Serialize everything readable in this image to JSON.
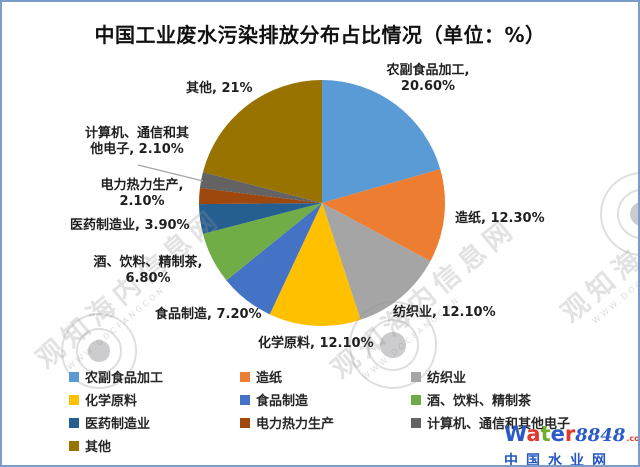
{
  "page": {
    "background": "#FFFFFF",
    "border_color": "#7B9CC9"
  },
  "chart_data": {
    "type": "pie",
    "title": "中国工业废水污染排放分布占比情况（单位：%）",
    "unit": "%",
    "start_angle_deg": 0,
    "direction": "clockwise",
    "legend_position": "bottom",
    "slices": [
      {
        "name": "农副食品加工",
        "value": 20.6,
        "label_lines": [
          "农副食品加工,",
          "20.60%"
        ],
        "color": "#5B9BD5"
      },
      {
        "name": "造纸",
        "value": 12.3,
        "label_lines": [
          "造纸, 12.30%"
        ],
        "color": "#ED7D31"
      },
      {
        "name": "纺织业",
        "value": 12.1,
        "label_lines": [
          "纺织业, 12.10%"
        ],
        "color": "#A5A5A5"
      },
      {
        "name": "化学原料",
        "value": 12.1,
        "label_lines": [
          "化学原料, 12.10%"
        ],
        "color": "#FFC000"
      },
      {
        "name": "食品制造",
        "value": 7.2,
        "label_lines": [
          "食品制造, 7.20%"
        ],
        "color": "#4472C4"
      },
      {
        "name": "酒、饮料、精制茶",
        "value": 6.8,
        "label_lines": [
          "酒、饮料、精制茶,",
          "6.80%"
        ],
        "color": "#70AD47"
      },
      {
        "name": "医药制造业",
        "value": 3.9,
        "label_lines": [
          "医药制造业, 3.90%"
        ],
        "color": "#255E91"
      },
      {
        "name": "电力热力生产",
        "value": 2.1,
        "label_lines": [
          "电力热力生产,",
          "2.10%"
        ],
        "color": "#9E480E"
      },
      {
        "name": "计算机、通信和其他电子",
        "value": 2.1,
        "label_lines": [
          "计算机、通信和其",
          "他电子, 2.10%"
        ],
        "color": "#636363"
      },
      {
        "name": "其他",
        "value": 21,
        "label_lines": [
          "其他, 21%"
        ],
        "color": "#997300"
      }
    ]
  },
  "watermark": {
    "diagonal_text": "观知海内信息网",
    "diagonal_subtext": "WWW.DOCFANGCON",
    "site": {
      "letters": [
        {
          "ch": "W",
          "color": "#2B59C8"
        },
        {
          "ch": "a",
          "color": "#E03A2F"
        },
        {
          "ch": "t",
          "color": "#6FAE2B"
        },
        {
          "ch": "e",
          "color": "#2B59C8"
        },
        {
          "ch": "r",
          "color": "#E03A2F"
        }
      ],
      "number": "8848",
      "number_color": "#2B59C8",
      "tld": ".com",
      "tld_color": "#E03A2F",
      "caption": "中国水业网",
      "caption_color": "#2456C4"
    }
  }
}
